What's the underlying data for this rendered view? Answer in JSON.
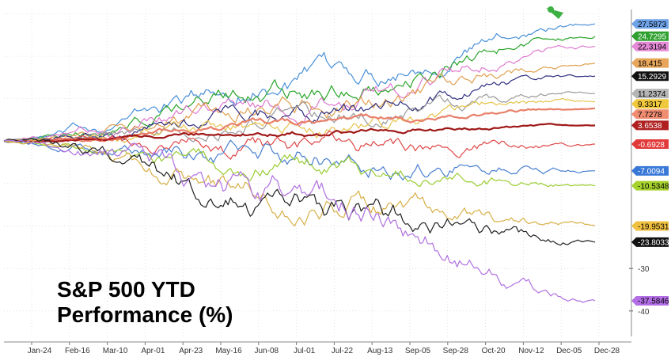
{
  "chart_data": {
    "type": "line",
    "title": "S&P 500 YTD",
    "subtitle": "Performance (%)",
    "x_ticks": [
      "Jan-24",
      "Feb-16",
      "Mar-10",
      "Apr-01",
      "Apr-23",
      "May-16",
      "Jun-08",
      "Jul-01",
      "Jul-22",
      "Aug-13",
      "Sep-05",
      "Sep-28",
      "Oct-20",
      "Nov-12",
      "Dec-05",
      "Dec-28"
    ],
    "y_ticks": [
      -30,
      -40
    ],
    "ylim": [
      -46,
      31
    ],
    "grid": true,
    "legend": "right-side value tags",
    "series": [
      {
        "color": "#4a90d9",
        "end_label": "27.5873",
        "label_bg": "#6fa3e8",
        "label_color": "#000000",
        "end": 27.6,
        "mid": 14,
        "vol": 1.4
      },
      {
        "color": "#2aa52a",
        "end_label": "24.7295",
        "label_bg": "#2ea02e",
        "label_color": "#ffffff",
        "end": 24.7,
        "mid": 12,
        "vol": 1.3
      },
      {
        "color": "#e07ad0",
        "end_label": "22.3194",
        "label_bg": "#e58ad6",
        "label_color": "#000000",
        "end": 22.3,
        "mid": 9,
        "vol": 1.3
      },
      {
        "color": "#e0a050",
        "end_label": "18.415",
        "label_bg": "#e8a65a",
        "label_color": "#000000",
        "end": 18.4,
        "mid": 8,
        "vol": 1.2
      },
      {
        "color": "#303080",
        "end_label": "15.2929",
        "label_bg": "#111111",
        "label_color": "#ffffff",
        "end": 15.3,
        "mid": 6,
        "vol": 1.1
      },
      {
        "color": "#9a9a9a",
        "end_label": "11.2374",
        "label_bg": "#b5b5b5",
        "label_color": "#000000",
        "end": 11.2,
        "mid": 5,
        "vol": 1.1
      },
      {
        "color": "#e6c34a",
        "end_label": "9.3317",
        "label_bg": "#f0c83c",
        "label_color": "#000000",
        "end": 9.3,
        "mid": 3,
        "vol": 1.0
      },
      {
        "color": "#e8806a",
        "end_label": "7.7278",
        "label_bg": "#f08c70",
        "label_color": "#000000",
        "end": 7.7,
        "mid": 4,
        "vol": 0.5
      },
      {
        "color": "#a01818",
        "end_label": "3.6538",
        "label_bg": "#b02020",
        "label_color": "#ffffff",
        "end": 3.7,
        "mid": 2,
        "vol": 0.35
      },
      {
        "color": "#e04848",
        "end_label": "-0.6928",
        "label_bg": "#e23a3a",
        "label_color": "#ffffff",
        "end": -0.7,
        "mid": -2,
        "vol": 1.2
      },
      {
        "color": "#4a80d0",
        "end_label": "-7.0094",
        "label_bg": "#3a78d8",
        "label_color": "#ffffff",
        "end": -7.0,
        "mid": -4,
        "vol": 1.4
      },
      {
        "color": "#9acd32",
        "end_label": "-10.5348",
        "label_bg": "#a6d22e",
        "label_color": "#000000",
        "end": -10.5,
        "mid": -6,
        "vol": 1.2
      },
      {
        "color": "#d8b048",
        "end_label": "-19.9531",
        "label_bg": "#f0c040",
        "label_color": "#000000",
        "end": -20.0,
        "mid": -14,
        "vol": 1.5
      },
      {
        "color": "#202020",
        "end_label": "-23.8033",
        "label_bg": "#111111",
        "label_color": "#ffffff",
        "end": -23.8,
        "mid": -16,
        "vol": 1.7
      },
      {
        "color": "#b070e0",
        "end_label": "-37.5846",
        "label_bg": "#b36ee6",
        "label_color": "#000000",
        "end": -37.6,
        "mid": -12,
        "vol": 1.9
      }
    ]
  }
}
